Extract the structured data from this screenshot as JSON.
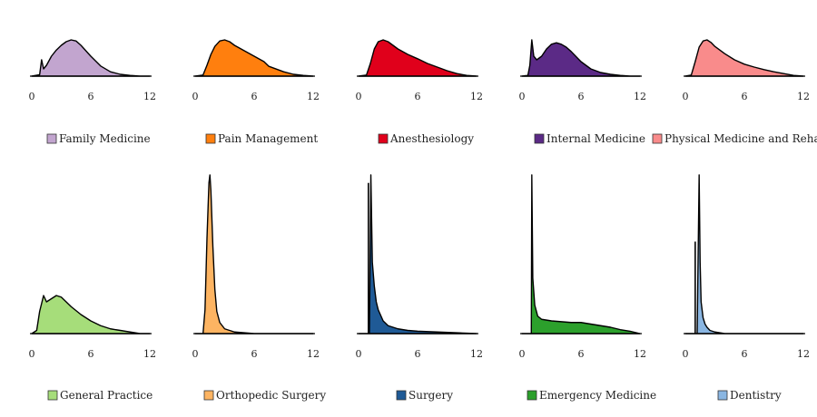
{
  "chart_data": {
    "type": "area",
    "chart_kind": "density small multiples",
    "title": "",
    "xlabel": "",
    "ylabel": "",
    "xlim": [
      0,
      12
    ],
    "x_ticks": [
      0,
      6,
      12
    ],
    "x_tick_labels": [
      "0",
      "6",
      "12"
    ],
    "grid": false,
    "legend_placement": "below each panel",
    "layout": {
      "rows": 2,
      "columns": 5
    },
    "panels": [
      {
        "name": "Family Medicine",
        "color": "#c2a5cf",
        "x": [
          0,
          0.8,
          1.0,
          1.2,
          1.5,
          2,
          2.5,
          3,
          3.5,
          4,
          4.5,
          5,
          6,
          7,
          8,
          9,
          10,
          11,
          12
        ],
        "y": [
          0,
          0.04,
          0.45,
          0.2,
          0.3,
          0.55,
          0.72,
          0.85,
          0.95,
          1.0,
          0.97,
          0.85,
          0.55,
          0.28,
          0.12,
          0.05,
          0.02,
          0.0,
          0.0
        ]
      },
      {
        "name": "Pain Management",
        "color": "#ff7f0e",
        "x": [
          0,
          0.8,
          1.2,
          1.6,
          2,
          2.5,
          3,
          3.5,
          4,
          5,
          6,
          7,
          7.5,
          8,
          9,
          10,
          11,
          12
        ],
        "y": [
          0,
          0.03,
          0.3,
          0.6,
          0.82,
          0.97,
          1.0,
          0.95,
          0.85,
          0.7,
          0.55,
          0.4,
          0.27,
          0.22,
          0.12,
          0.05,
          0.02,
          0.0
        ]
      },
      {
        "name": "Anesthesiology",
        "color": "#e0001b",
        "x": [
          0,
          0.8,
          1.2,
          1.6,
          2,
          2.5,
          3,
          3.5,
          4,
          5,
          6,
          7,
          8,
          9,
          10,
          11,
          12
        ],
        "y": [
          0,
          0.03,
          0.35,
          0.75,
          0.95,
          1.0,
          0.95,
          0.85,
          0.75,
          0.6,
          0.48,
          0.35,
          0.25,
          0.15,
          0.07,
          0.02,
          0.0
        ]
      },
      {
        "name": "Internal Medicine",
        "color": "#5b2a86",
        "x": [
          0,
          0.6,
          0.8,
          1.0,
          1.2,
          1.5,
          2,
          2.5,
          3,
          3.5,
          4,
          4.5,
          5,
          6,
          7,
          8,
          9,
          10,
          11,
          12
        ],
        "y": [
          0,
          0.02,
          0.3,
          1.0,
          0.55,
          0.45,
          0.55,
          0.75,
          0.88,
          0.92,
          0.88,
          0.8,
          0.68,
          0.4,
          0.2,
          0.1,
          0.05,
          0.02,
          0.0,
          0.0
        ]
      },
      {
        "name": "Physical Medicine and Rehabilitation",
        "color": "#f98b8b",
        "x": [
          0,
          0.6,
          1.0,
          1.4,
          1.8,
          2.2,
          2.6,
          3,
          4,
          5,
          6,
          7,
          8,
          9,
          10,
          11,
          12
        ],
        "y": [
          0,
          0.03,
          0.4,
          0.8,
          0.97,
          1.0,
          0.93,
          0.82,
          0.62,
          0.45,
          0.33,
          0.25,
          0.18,
          0.12,
          0.07,
          0.02,
          0.0
        ]
      },
      {
        "name": "General Practice",
        "color": "#a6dd7a",
        "x": [
          0,
          0.5,
          0.8,
          1.2,
          1.5,
          2,
          2.5,
          3,
          3.5,
          4,
          5,
          6,
          7,
          8,
          9,
          10,
          11,
          12
        ],
        "y": [
          0,
          0.02,
          0.14,
          0.24,
          0.2,
          0.22,
          0.24,
          0.23,
          0.2,
          0.17,
          0.12,
          0.08,
          0.05,
          0.03,
          0.02,
          0.01,
          0.0,
          0.0
        ]
      },
      {
        "name": "Orthopedic Surgery",
        "color": "#fdb462",
        "x": [
          0,
          0.8,
          1.0,
          1.2,
          1.4,
          1.5,
          1.6,
          1.8,
          2.0,
          2.2,
          2.5,
          3,
          4,
          5,
          6,
          8,
          10,
          12
        ],
        "y": [
          0,
          0.0,
          0.15,
          0.6,
          0.95,
          1.0,
          0.9,
          0.55,
          0.28,
          0.14,
          0.07,
          0.03,
          0.01,
          0.005,
          0.0,
          0.0,
          0.0,
          0.0
        ]
      },
      {
        "name": "Surgery",
        "color": "#1f5a96",
        "spike": {
          "x": 1.0,
          "y": 0.95
        },
        "x": [
          0,
          1.1,
          1.25,
          1.4,
          1.6,
          1.8,
          2,
          2.5,
          3,
          4,
          5,
          6,
          8,
          10,
          12
        ],
        "y": [
          0,
          0.0,
          1.0,
          0.45,
          0.3,
          0.2,
          0.15,
          0.08,
          0.05,
          0.03,
          0.02,
          0.015,
          0.01,
          0.005,
          0.0
        ]
      },
      {
        "name": "Emergency Medicine",
        "color": "#2ca02c",
        "x": [
          0,
          0.95,
          1.0,
          1.1,
          1.3,
          1.6,
          2,
          3,
          4,
          5,
          6,
          7,
          8,
          9,
          10,
          11,
          12
        ],
        "y": [
          0,
          0.0,
          1.0,
          0.35,
          0.18,
          0.11,
          0.09,
          0.08,
          0.075,
          0.07,
          0.07,
          0.06,
          0.05,
          0.04,
          0.025,
          0.015,
          0.0
        ]
      },
      {
        "name": "Dentistry",
        "color": "#8ab6e2",
        "spike": {
          "x": 1.0,
          "y": 0.58
        },
        "x": [
          0,
          1.2,
          1.3,
          1.4,
          1.5,
          1.6,
          1.8,
          2.0,
          2.2,
          2.5,
          3,
          4,
          6,
          12
        ],
        "y": [
          0,
          0.0,
          0.5,
          1.0,
          0.45,
          0.2,
          0.1,
          0.06,
          0.04,
          0.02,
          0.01,
          0.0,
          0.0,
          0.0
        ]
      }
    ]
  }
}
